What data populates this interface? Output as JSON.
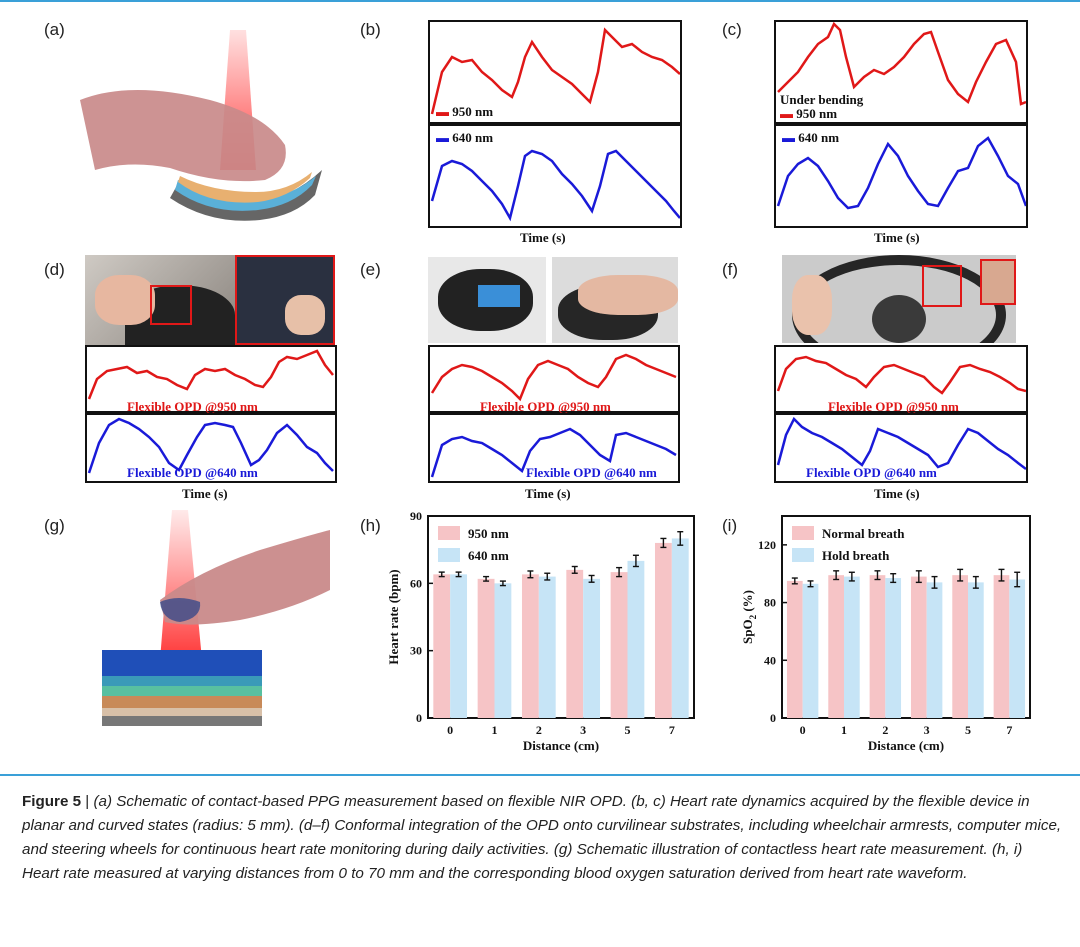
{
  "panels": {
    "a": {
      "label": "(a)"
    },
    "b": {
      "label": "(b)",
      "legend_top": "950 nm",
      "legend_bottom": "640 nm",
      "xlabel": "Time (s)"
    },
    "c": {
      "label": "(c)",
      "note": "Under bending",
      "legend_top": "950 nm",
      "legend_bottom": "640 nm",
      "xlabel": "Time (s)"
    },
    "d": {
      "label": "(d)",
      "top_label": "Flexible OPD @950 nm",
      "bottom_label": "Flexible OPD @640 nm",
      "xlabel": "Time (s)"
    },
    "e": {
      "label": "(e)",
      "top_label": "Flexible OPD @950 nm",
      "bottom_label": "Flexible OPD @640 nm",
      "xlabel": "Time (s)"
    },
    "f": {
      "label": "(f)",
      "top_label": "Flexible OPD @950 nm",
      "bottom_label": "Flexible OPD @640 nm",
      "xlabel": "Time (s)"
    },
    "g": {
      "label": "(g)"
    },
    "h": {
      "label": "(h)"
    },
    "i": {
      "label": "(i)"
    }
  },
  "colors": {
    "red": "#e01818",
    "blue": "#1a1ad8",
    "pink": "#f6c4c6",
    "lightblue": "#c6e4f6",
    "rule": "#3aa0d8"
  },
  "caption": {
    "figure": "Figure 5",
    "separator": " | ",
    "text": "(a) Schematic of contact-based PPG measurement based on flexible NIR OPD. (b, c) Heart rate dynamics acquired by the flexible device in planar and curved states (radius: 5 mm). (d–f) Conformal integration of the OPD onto curvilinear substrates, including wheelchair armrests, computer mice, and steering wheels for continuous heart rate monitoring during daily activities. (g) Schematic illustration of contactless heart rate measurement. (h, i) Heart rate measured at varying distances from 0 to 70 mm and the corresponding blood oxygen saturation derived from heart rate waveform."
  },
  "chart_data": [
    {
      "type": "bar",
      "panel": "h",
      "categories": [
        "0",
        "1",
        "2",
        "3",
        "5",
        "7"
      ],
      "xlabel": "Distance (cm)",
      "ylabel": "Heart  rate (bpm)",
      "ylim": [
        0,
        90
      ],
      "yticks": [
        "0",
        "30",
        "60",
        "90"
      ],
      "legend": "top-left",
      "series": [
        {
          "name": "950 nm",
          "color": "#f6c4c6",
          "values": [
            64,
            62,
            64,
            66,
            65,
            78
          ],
          "errors": [
            1,
            1,
            1.5,
            1.5,
            2,
            2
          ]
        },
        {
          "name": "640 nm",
          "color": "#c6e4f6",
          "values": [
            64,
            60,
            63,
            62,
            70,
            80
          ],
          "errors": [
            1,
            1,
            1.5,
            1.5,
            2.5,
            3
          ]
        }
      ]
    },
    {
      "type": "bar",
      "panel": "i",
      "categories": [
        "0",
        "1",
        "2",
        "3",
        "5",
        "7"
      ],
      "xlabel": "Distance (cm)",
      "ylabel": "SpO",
      "ylabel_sub": "2",
      "ylabel_unit": " (%)",
      "ylim": [
        0,
        140
      ],
      "yticks": [
        "0",
        "40",
        "80",
        "120"
      ],
      "legend": "top-left",
      "series": [
        {
          "name": "Normal breath",
          "color": "#f6c4c6",
          "values": [
            95,
            99,
            99,
            98,
            99,
            99
          ],
          "errors": [
            2,
            3,
            3,
            4,
            4,
            4
          ]
        },
        {
          "name": "Hold breath",
          "color": "#c6e4f6",
          "values": [
            93,
            98,
            97,
            94,
            94,
            96
          ],
          "errors": [
            2,
            3,
            3,
            4,
            4,
            5
          ]
        }
      ]
    }
  ]
}
